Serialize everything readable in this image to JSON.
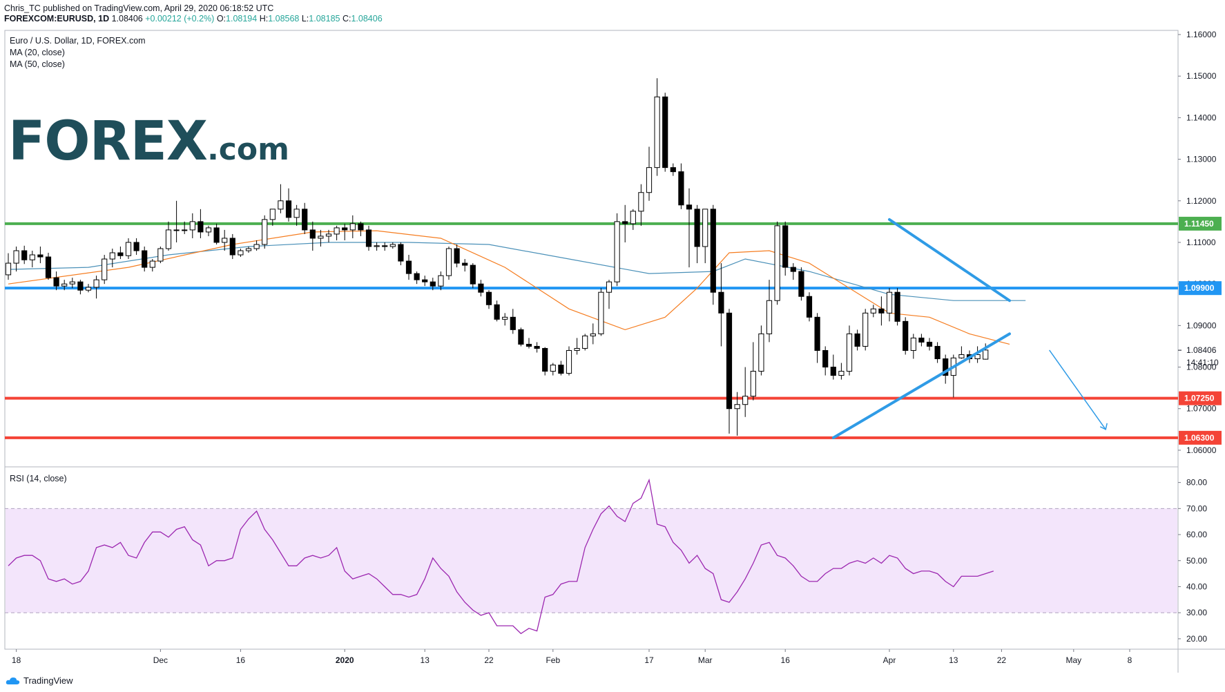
{
  "header": {
    "published": "Chris_TC published on TradingView.com, April 29, 2020 06:18:52 UTC",
    "symbol": "FOREXCOM:EURUSD, 1D",
    "last": "1.08406",
    "change": "+0.00212 (+0.2%)",
    "open_label": "O:",
    "open": "1.08194",
    "high_label": "H:",
    "high": "1.08568",
    "low_label": "L:",
    "low": "1.08185",
    "close_label": "C:",
    "close": "1.08406"
  },
  "legend": {
    "instrument": "Euro / U.S. Dollar, 1D, FOREX.com",
    "ma20": "MA (20, close)",
    "ma50": "MA (50, close)",
    "rsi": "RSI (14, close)"
  },
  "logo": {
    "main": "FOREX",
    "suffix": ".com"
  },
  "footer": {
    "brand": "TradingView"
  },
  "colors": {
    "up_candle": "#ffffff",
    "down_candle": "#000000",
    "ma20": "#f57c1f",
    "ma50": "#4a90b8",
    "resistance_green": "#4caf50",
    "support_blue": "#2196f3",
    "support_red": "#f44336",
    "trendline": "#2f9be6",
    "rsi_line": "#9c27b0",
    "rsi_band": "#f3e5fb"
  },
  "chart_data": [
    {
      "type": "candlestick",
      "x_ticks": [
        "18",
        "Dec",
        "16",
        "2020",
        "13",
        "22",
        "Feb",
        "17",
        "Mar",
        "16",
        "Apr",
        "13",
        "22",
        "May",
        "8"
      ],
      "y_ticks": [
        "1.16000",
        "1.15000",
        "1.14000",
        "1.13000",
        "1.12000",
        "1.11000",
        "1.10000",
        "1.09000",
        "1.08000",
        "1.07000",
        "1.06000"
      ],
      "ylim": [
        1.056,
        1.161
      ],
      "levels": [
        {
          "label": "1.11450",
          "value": 1.1145,
          "color": "#4caf50"
        },
        {
          "label": "1.09900",
          "value": 1.099,
          "color": "#2196f3"
        },
        {
          "label": "1.07250",
          "value": 1.0725,
          "color": "#f44336"
        },
        {
          "label": "1.06300",
          "value": 1.063,
          "color": "#f44336"
        }
      ],
      "last_price": "1.08406",
      "countdown": "14:41:10",
      "ohlc": [
        [
          1.1022,
          1.1074,
          1.101,
          1.105
        ],
        [
          1.105,
          1.109,
          1.103,
          1.108
        ],
        [
          1.108,
          1.1092,
          1.1048,
          1.1058
        ],
        [
          1.1058,
          1.108,
          1.104,
          1.107
        ],
        [
          1.107,
          1.109,
          1.105,
          1.1065
        ],
        [
          1.1065,
          1.1075,
          1.101,
          1.1015
        ],
        [
          1.1015,
          1.103,
          1.0985,
          1.0995
        ],
        [
          1.0995,
          1.101,
          1.0985,
          1.1
        ],
        [
          1.1,
          1.1015,
          1.099,
          1.1005
        ],
        [
          1.1005,
          1.101,
          1.0975,
          1.0985
        ],
        [
          1.0985,
          1.1,
          1.098,
          1.0992
        ],
        [
          1.0992,
          1.102,
          1.0965,
          1.101
        ],
        [
          1.101,
          1.107,
          1.1,
          1.106
        ],
        [
          1.106,
          1.1085,
          1.104,
          1.1075
        ],
        [
          1.1075,
          1.109,
          1.106,
          1.1068
        ],
        [
          1.1068,
          1.111,
          1.106,
          1.11
        ],
        [
          1.11,
          1.111,
          1.107,
          1.108
        ],
        [
          1.108,
          1.109,
          1.103,
          1.104
        ],
        [
          1.104,
          1.106,
          1.103,
          1.1055
        ],
        [
          1.1055,
          1.109,
          1.105,
          1.1085
        ],
        [
          1.1085,
          1.115,
          1.108,
          1.113
        ],
        [
          1.113,
          1.12,
          1.11,
          1.113
        ],
        [
          1.113,
          1.115,
          1.112,
          1.113
        ],
        [
          1.113,
          1.117,
          1.111,
          1.115
        ],
        [
          1.115,
          1.118,
          1.111,
          1.1125
        ],
        [
          1.1125,
          1.114,
          1.1115,
          1.1135
        ],
        [
          1.1135,
          1.1145,
          1.1095,
          1.11
        ],
        [
          1.11,
          1.113,
          1.108,
          1.111
        ],
        [
          1.111,
          1.112,
          1.106,
          1.107
        ],
        [
          1.107,
          1.1085,
          1.1065,
          1.108
        ],
        [
          1.108,
          1.109,
          1.1075,
          1.1085
        ],
        [
          1.1085,
          1.1105,
          1.108,
          1.1095
        ],
        [
          1.1095,
          1.1165,
          1.1085,
          1.1155
        ],
        [
          1.1155,
          1.118,
          1.114,
          1.118
        ],
        [
          1.118,
          1.124,
          1.117,
          1.12
        ],
        [
          1.12,
          1.123,
          1.115,
          1.116
        ],
        [
          1.116,
          1.119,
          1.114,
          1.118
        ],
        [
          1.118,
          1.1195,
          1.112,
          1.113
        ],
        [
          1.113,
          1.115,
          1.108,
          1.111
        ],
        [
          1.111,
          1.113,
          1.109,
          1.1115
        ],
        [
          1.1115,
          1.113,
          1.11,
          1.112
        ],
        [
          1.112,
          1.114,
          1.1105,
          1.1135
        ],
        [
          1.1135,
          1.1145,
          1.1105,
          1.113
        ],
        [
          1.113,
          1.1165,
          1.111,
          1.1145
        ],
        [
          1.1145,
          1.115,
          1.1115,
          1.113
        ],
        [
          1.113,
          1.114,
          1.108,
          1.109
        ],
        [
          1.109,
          1.11,
          1.108,
          1.1092
        ],
        [
          1.1092,
          1.11,
          1.108,
          1.109
        ],
        [
          1.109,
          1.11,
          1.1085,
          1.1095
        ],
        [
          1.1095,
          1.11,
          1.1045,
          1.1055
        ],
        [
          1.1055,
          1.107,
          1.101,
          1.1025
        ],
        [
          1.1025,
          1.103,
          1.1,
          1.101
        ],
        [
          1.101,
          1.102,
          1.0995,
          1.1005
        ],
        [
          1.1005,
          1.1015,
          1.0985,
          1.0995
        ],
        [
          1.0995,
          1.103,
          1.0985,
          1.102
        ],
        [
          1.102,
          1.109,
          1.101,
          1.1085
        ],
        [
          1.1085,
          1.1095,
          1.104,
          1.105
        ],
        [
          1.105,
          1.106,
          1.103,
          1.1045
        ],
        [
          1.1045,
          1.105,
          1.099,
          1.1
        ],
        [
          1.1,
          1.101,
          1.097,
          1.098
        ],
        [
          1.098,
          1.0985,
          1.094,
          1.095
        ],
        [
          1.095,
          1.096,
          1.091,
          1.0915
        ],
        [
          1.0915,
          1.093,
          1.09,
          1.092
        ],
        [
          1.092,
          1.094,
          1.088,
          1.089
        ],
        [
          1.089,
          1.0895,
          1.085,
          1.0855
        ],
        [
          1.0855,
          1.087,
          1.0845,
          1.085
        ],
        [
          1.085,
          1.086,
          1.0835,
          1.0845
        ],
        [
          1.0845,
          1.0848,
          1.078,
          1.079
        ],
        [
          1.079,
          1.081,
          1.078,
          1.0805
        ],
        [
          1.0805,
          1.0815,
          1.078,
          1.0785
        ],
        [
          1.0785,
          1.085,
          1.078,
          1.084
        ],
        [
          1.084,
          1.087,
          1.083,
          1.0845
        ],
        [
          1.0845,
          1.088,
          1.084,
          1.0875
        ],
        [
          1.0875,
          1.0905,
          1.0855,
          1.088
        ],
        [
          1.088,
          1.099,
          1.0875,
          1.098
        ],
        [
          1.098,
          1.101,
          1.094,
          1.1005
        ],
        [
          1.1005,
          1.117,
          1.0995,
          1.115
        ],
        [
          1.115,
          1.119,
          1.11,
          1.1145
        ],
        [
          1.1145,
          1.118,
          1.113,
          1.1175
        ],
        [
          1.1175,
          1.124,
          1.114,
          1.122
        ],
        [
          1.122,
          1.133,
          1.12,
          1.128
        ],
        [
          1.128,
          1.1495,
          1.126,
          1.145
        ],
        [
          1.145,
          1.146,
          1.127,
          1.128
        ],
        [
          1.128,
          1.129,
          1.126,
          1.127
        ],
        [
          1.127,
          1.129,
          1.118,
          1.119
        ],
        [
          1.119,
          1.123,
          1.104,
          1.118
        ],
        [
          1.118,
          1.119,
          1.105,
          1.109
        ],
        [
          1.109,
          1.118,
          1.105,
          1.118
        ],
        [
          1.118,
          1.119,
          1.095,
          1.098
        ],
        [
          1.098,
          1.105,
          1.085,
          1.093
        ],
        [
          1.093,
          1.094,
          1.064,
          1.07
        ],
        [
          1.07,
          1.074,
          1.0635,
          1.071
        ],
        [
          1.071,
          1.08,
          1.068,
          1.073
        ],
        [
          1.073,
          1.086,
          1.072,
          1.079
        ],
        [
          1.079,
          1.09,
          1.078,
          1.088
        ],
        [
          1.088,
          1.101,
          1.086,
          1.096
        ],
        [
          1.096,
          1.115,
          1.095,
          1.114
        ],
        [
          1.114,
          1.115,
          1.102,
          1.104
        ],
        [
          1.104,
          1.105,
          1.101,
          1.103
        ],
        [
          1.103,
          1.104,
          1.096,
          1.097
        ],
        [
          1.097,
          1.098,
          1.091,
          1.092
        ],
        [
          1.092,
          1.093,
          1.081,
          1.084
        ],
        [
          1.084,
          1.085,
          1.078,
          1.08
        ],
        [
          1.08,
          1.083,
          1.077,
          1.078
        ],
        [
          1.078,
          1.081,
          1.077,
          1.079
        ],
        [
          1.079,
          1.09,
          1.078,
          1.088
        ],
        [
          1.088,
          1.089,
          1.084,
          1.085
        ],
        [
          1.085,
          1.094,
          1.084,
          1.093
        ],
        [
          1.093,
          1.095,
          1.092,
          1.094
        ],
        [
          1.094,
          1.097,
          1.09,
          1.093
        ],
        [
          1.093,
          1.099,
          1.091,
          1.098
        ],
        [
          1.098,
          1.099,
          1.09,
          1.091
        ],
        [
          1.091,
          1.092,
          1.083,
          1.084
        ],
        [
          1.084,
          1.088,
          1.082,
          1.087
        ],
        [
          1.087,
          1.088,
          1.085,
          1.086
        ],
        [
          1.086,
          1.087,
          1.084,
          1.085
        ],
        [
          1.085,
          1.086,
          1.081,
          1.082
        ],
        [
          1.082,
          1.083,
          1.076,
          1.078
        ],
        [
          1.078,
          1.083,
          1.0727,
          1.0822
        ],
        [
          1.0822,
          1.085,
          1.082,
          1.083
        ],
        [
          1.083,
          1.084,
          1.081,
          1.082
        ],
        [
          1.082,
          1.085,
          1.081,
          1.083
        ],
        [
          1.0819,
          1.0857,
          1.0818,
          1.0841
        ]
      ],
      "ma20": [
        [
          0,
          1.1
        ],
        [
          15,
          1.104
        ],
        [
          28,
          1.1095
        ],
        [
          38,
          1.1125
        ],
        [
          46,
          1.1128
        ],
        [
          54,
          1.111
        ],
        [
          62,
          1.104
        ],
        [
          70,
          1.094
        ],
        [
          77,
          1.089
        ],
        [
          82,
          1.092
        ],
        [
          86,
          1.099
        ],
        [
          90,
          1.1075
        ],
        [
          95,
          1.108
        ],
        [
          100,
          1.105
        ],
        [
          105,
          1.099
        ],
        [
          110,
          1.093
        ],
        [
          115,
          1.092
        ],
        [
          120,
          1.088
        ],
        [
          125,
          1.0855
        ]
      ],
      "ma50": [
        [
          0,
          1.1035
        ],
        [
          10,
          1.104
        ],
        [
          20,
          1.107
        ],
        [
          30,
          1.109
        ],
        [
          40,
          1.11
        ],
        [
          50,
          1.11
        ],
        [
          60,
          1.1095
        ],
        [
          70,
          1.106
        ],
        [
          80,
          1.1025
        ],
        [
          88,
          1.103
        ],
        [
          92,
          1.106
        ],
        [
          100,
          1.103
        ],
        [
          110,
          1.0975
        ],
        [
          118,
          1.096
        ],
        [
          127,
          1.096
        ]
      ],
      "trendlines": [
        {
          "from": [
            110,
            1.1155
          ],
          "to": [
            125,
            1.096
          ]
        },
        {
          "from": [
            103,
            1.063
          ],
          "to": [
            125,
            1.088
          ]
        },
        {
          "from": [
            130,
            1.084
          ],
          "to": [
            137,
            1.065
          ]
        }
      ]
    },
    {
      "type": "line",
      "title": "RSI (14, close)",
      "y_ticks": [
        "80.00",
        "70.00",
        "60.00",
        "50.00",
        "40.00",
        "30.00",
        "20.00"
      ],
      "ylim": [
        16,
        86
      ],
      "band": [
        30,
        70
      ],
      "values": [
        48,
        51,
        52,
        52,
        50,
        43,
        42,
        43,
        41,
        42,
        46,
        55,
        56,
        55,
        57,
        52,
        51,
        57,
        61,
        61,
        59,
        62,
        63,
        58,
        56,
        48,
        50,
        50,
        51,
        62,
        66,
        69,
        62,
        58,
        53,
        48,
        48,
        51,
        52,
        51,
        52,
        55,
        46,
        43,
        44,
        45,
        43,
        40,
        37,
        37,
        36,
        37,
        43,
        51,
        47,
        44,
        38,
        34,
        31,
        29,
        30,
        25,
        25,
        25,
        22,
        24,
        23,
        36,
        37,
        41,
        42,
        42,
        55,
        62,
        68,
        71,
        67,
        65,
        72,
        74,
        81,
        64,
        63,
        57,
        54,
        49,
        52,
        47,
        45,
        35,
        34,
        38,
        43,
        49,
        56,
        57,
        52,
        51,
        48,
        44,
        42,
        42,
        45,
        47,
        47,
        49,
        50,
        49,
        51,
        49,
        52,
        51,
        47,
        45,
        46,
        46,
        45,
        42,
        40,
        44,
        44,
        44,
        45,
        46
      ]
    }
  ]
}
